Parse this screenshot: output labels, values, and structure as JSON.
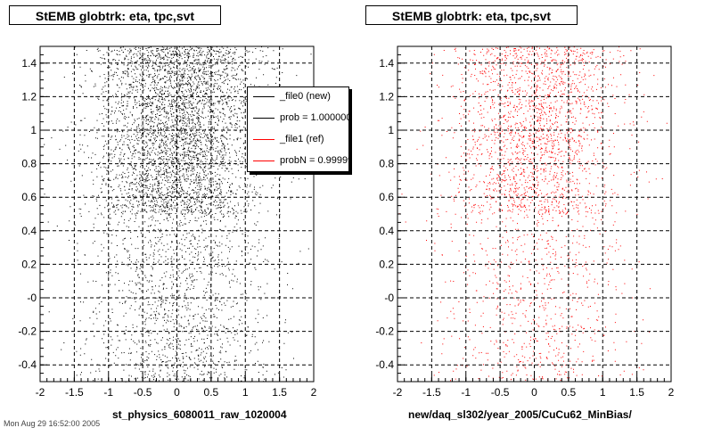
{
  "colors": {
    "file0": "#000000",
    "file1": "#ff0000"
  },
  "legend": {
    "items": [
      {
        "label": "_file0 (new)",
        "color": "#000000"
      },
      {
        "label": "prob = 1.000000",
        "color": "#000000"
      },
      {
        "label": "_file1 (ref)",
        "color": "#ff0000"
      },
      {
        "label": "probN = 0.99999",
        "color": "#ff0000"
      }
    ]
  },
  "footer": {
    "text": "Mon Aug 29 16:52:00 2005"
  },
  "chart_data": [
    {
      "type": "scatter",
      "title": "StEMB globtrk: eta, tpc,svt",
      "xlabel": "st_physics_6080011_raw_1020004",
      "ylabel": "",
      "xlim": [
        -2,
        2
      ],
      "ylim": [
        -0.5,
        1.5
      ],
      "x_ticks": [
        "-2",
        "-1.5",
        "-1",
        "-0.5",
        "0",
        "0.5",
        "1",
        "1.5",
        "2"
      ],
      "y_ticks": [
        "-0.4",
        "-0.2",
        "-0",
        "0.2",
        "0.4",
        "0.6",
        "0.8",
        "1",
        "1.2",
        "1.4"
      ],
      "grid": true,
      "color": "#000000",
      "legend_position": "top-right",
      "distribution": {
        "x_center": 0.0,
        "x_spread": 0.9,
        "band_low": [
          -0.5,
          0.5
        ],
        "band_high": [
          0.5,
          1.5
        ],
        "density_low": 0.35,
        "density_high": 1.0
      }
    },
    {
      "type": "scatter",
      "title": "StEMB globtrk: eta, tpc,svt",
      "xlabel": "new/daq_sl302/year_2005/CuCu62_MinBias/",
      "ylabel": "",
      "xlim": [
        -2,
        2
      ],
      "ylim": [
        -0.5,
        1.5
      ],
      "x_ticks": [
        "-2",
        "-1.5",
        "-1",
        "-0.5",
        "0",
        "0.5",
        "1",
        "1.5",
        "2"
      ],
      "y_ticks": [
        "-0.4",
        "-0.2",
        "-0",
        "0.2",
        "0.4",
        "0.6",
        "0.8",
        "1",
        "1.2",
        "1.4"
      ],
      "grid": true,
      "color": "#ff0000",
      "distribution": {
        "x_center": 0.0,
        "x_spread": 0.9,
        "band_low": [
          -0.5,
          0.5
        ],
        "band_high": [
          0.5,
          1.5
        ],
        "density_low": 0.35,
        "density_high": 1.0
      }
    }
  ]
}
